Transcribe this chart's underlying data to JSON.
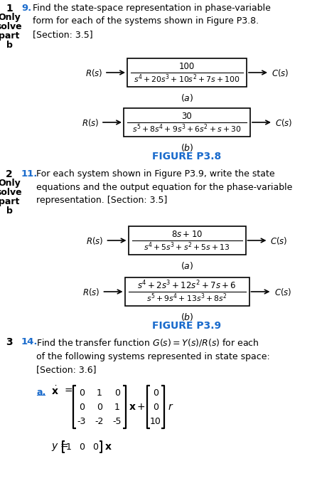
{
  "bg_color": "#ffffff",
  "blue_color": "#1a6bcc",
  "p1_num": "1",
  "p1_side": [
    "Only",
    "solve",
    "part",
    "b"
  ],
  "p1_prob": "9.",
  "p1_text": "Find the state-space representation in phase-variable\nform for each of the systems shown in Figure P3.8.\n[Section: 3.5]",
  "fig1_label": "FIGURE P3.8",
  "p2_num": "2",
  "p2_side": [
    "Only",
    "solve",
    "part",
    "b"
  ],
  "p2_prob": "11.",
  "p2_text": "For each system shown in Figure P3.9, write the state\nequations and the output equation for the phase-variable\nrepresentation. [Section: 3.5]",
  "fig2_label": "FIGURE P3.9",
  "p3_num": "3",
  "p3_prob": "14.",
  "p3_text_plain": "Find the transfer function ",
  "p3_text_math": "$G(s) = Y(s)/R(s)$",
  "p3_text_rest": " for each\nof the following systems represented in state space:\n[Section: 3.6]"
}
